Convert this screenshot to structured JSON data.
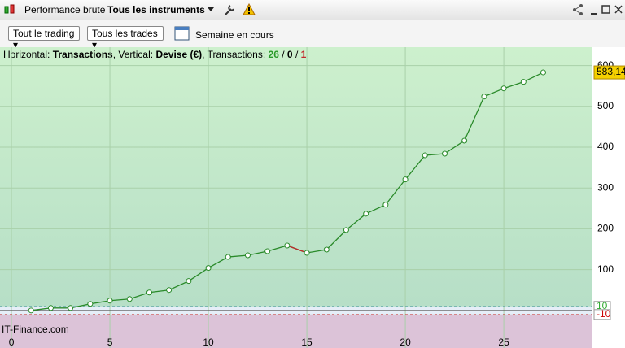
{
  "toolbar": {
    "tab": "Performance brute",
    "instruments": "Tous les instruments"
  },
  "filters": {
    "trading": "Tout le trading",
    "trades": "Tous les trades",
    "period": "Semaine en cours"
  },
  "info": {
    "horizontal_label": "Horizontal:",
    "horizontal": "Transactions",
    "vertical_label": ", Vertical:",
    "vertical": "Devise (€)",
    "count_label": ", Transactions:",
    "wins": "26",
    "neutral": "0",
    "losses": "1",
    "separator": "/"
  },
  "watermark": "IT-Finance.com",
  "chart_data": {
    "type": "line",
    "x": [
      1,
      2,
      3,
      4,
      5,
      6,
      7,
      8,
      9,
      10,
      11,
      12,
      13,
      14,
      15,
      16,
      17,
      18,
      19,
      20,
      21,
      22,
      23,
      24,
      25,
      26,
      27
    ],
    "series": [
      {
        "color": "#2a8a2a",
        "loss_color": "#c0282b",
        "values": [
          0,
          6,
          6,
          16,
          24,
          28,
          44,
          50,
          72,
          104,
          131,
          135,
          145,
          159,
          141,
          149,
          197,
          237,
          259,
          321,
          380,
          384,
          416,
          524,
          544,
          560,
          583.14
        ],
        "value_labels": [
          null,
          null,
          null,
          null,
          null,
          null,
          null,
          null,
          null,
          null,
          null,
          null,
          null,
          null,
          null,
          null,
          null,
          null,
          null,
          null,
          null,
          null,
          null,
          null,
          null,
          null,
          "583,14"
        ]
      }
    ],
    "xlim": [
      -0.58,
      29.5
    ],
    "ylim": [
      -92,
      645
    ],
    "xticks": [
      0,
      5,
      10,
      15,
      20,
      25
    ],
    "yticks": [
      100,
      200,
      300,
      400,
      500,
      600
    ],
    "threshold_lines": [
      10,
      -10
    ],
    "grid": true
  }
}
